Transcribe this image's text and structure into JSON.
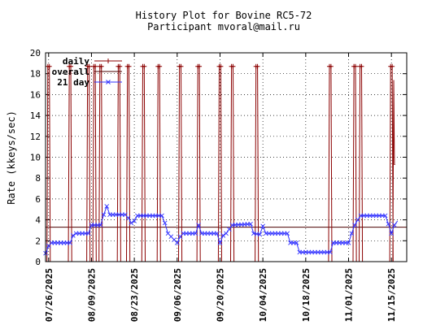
{
  "chart_data": {
    "type": "line",
    "title": "History Plot for Bovine RC5-72",
    "subtitle": "Participant mvoral@mail.ru",
    "xlabel": "",
    "ylabel": "Rate (kkeys/sec)",
    "ylim": [
      0,
      20
    ],
    "yticks": [
      0,
      2,
      4,
      6,
      8,
      10,
      12,
      14,
      16,
      18,
      20
    ],
    "xlim": [
      "2025-07-25",
      "2025-11-20"
    ],
    "xticks": [
      "07/26/2025",
      "08/09/2025",
      "08/23/2025",
      "09/06/2025",
      "09/20/2025",
      "10/04/2025",
      "10/18/2025",
      "11/01/2025",
      "11/15/2025"
    ],
    "grid": true,
    "legend_position": "top-left",
    "colors": {
      "daily": "#8b0000",
      "overall": "#4b0000",
      "21day": "#3333ff",
      "grid": "#000000"
    },
    "series": [
      {
        "name": "daily",
        "style": "impulse-peaks",
        "marker": "+",
        "peaks": [
          {
            "date": "2025-07-26",
            "value": 18.7
          },
          {
            "date": "2025-08-02",
            "value": 18.7
          },
          {
            "date": "2025-08-08",
            "value": 18.7
          },
          {
            "date": "2025-08-10",
            "value": 18.7
          },
          {
            "date": "2025-08-12",
            "value": 18.7
          },
          {
            "date": "2025-08-18",
            "value": 18.7
          },
          {
            "date": "2025-08-21",
            "value": 18.7
          },
          {
            "date": "2025-08-26",
            "value": 18.7
          },
          {
            "date": "2025-08-31",
            "value": 18.7
          },
          {
            "date": "2025-09-07",
            "value": 18.7
          },
          {
            "date": "2025-09-13",
            "value": 18.7
          },
          {
            "date": "2025-09-20",
            "value": 18.7
          },
          {
            "date": "2025-09-24",
            "value": 18.7
          },
          {
            "date": "2025-10-02",
            "value": 18.7
          },
          {
            "date": "2025-10-26",
            "value": 18.7
          },
          {
            "date": "2025-11-03",
            "value": 18.7
          },
          {
            "date": "2025-11-05",
            "value": 18.7
          },
          {
            "date": "2025-11-15",
            "value": 18.7
          }
        ],
        "last": {
          "date": "2025-11-16",
          "value": 9.3
        }
      },
      {
        "name": "overall",
        "value": 3.3
      },
      {
        "name": "21 day",
        "marker": "x",
        "points": [
          [
            "2025-07-25",
            0.8
          ],
          [
            "2025-07-26",
            1.5
          ],
          [
            "2025-07-27",
            1.8
          ],
          [
            "2025-08-02",
            1.8
          ],
          [
            "2025-08-03",
            2.5
          ],
          [
            "2025-08-04",
            2.7
          ],
          [
            "2025-08-08",
            2.7
          ],
          [
            "2025-08-09",
            3.5
          ],
          [
            "2025-08-12",
            3.5
          ],
          [
            "2025-08-13",
            4.5
          ],
          [
            "2025-08-14",
            5.3
          ],
          [
            "2025-08-15",
            4.5
          ],
          [
            "2025-08-20",
            4.5
          ],
          [
            "2025-08-21",
            4.2
          ],
          [
            "2025-08-22",
            3.7
          ],
          [
            "2025-08-23",
            3.9
          ],
          [
            "2025-08-24",
            4.4
          ],
          [
            "2025-09-01",
            4.4
          ],
          [
            "2025-09-02",
            3.7
          ],
          [
            "2025-09-03",
            2.7
          ],
          [
            "2025-09-06",
            1.8
          ],
          [
            "2025-09-07",
            2.4
          ],
          [
            "2025-09-08",
            2.7
          ],
          [
            "2025-09-12",
            2.7
          ],
          [
            "2025-09-13",
            3.5
          ],
          [
            "2025-09-14",
            2.7
          ],
          [
            "2025-09-19",
            2.7
          ],
          [
            "2025-09-20",
            1.8
          ],
          [
            "2025-09-21",
            2.5
          ],
          [
            "2025-09-22",
            2.7
          ],
          [
            "2025-09-24",
            3.5
          ],
          [
            "2025-09-30",
            3.6
          ],
          [
            "2025-10-01",
            2.7
          ],
          [
            "2025-10-03",
            2.6
          ],
          [
            "2025-10-04",
            3.4
          ],
          [
            "2025-10-05",
            2.7
          ],
          [
            "2025-10-12",
            2.7
          ],
          [
            "2025-10-13",
            1.8
          ],
          [
            "2025-10-15",
            1.8
          ],
          [
            "2025-10-16",
            0.9
          ],
          [
            "2025-10-26",
            0.9
          ],
          [
            "2025-10-27",
            1.8
          ],
          [
            "2025-11-01",
            1.8
          ],
          [
            "2025-11-02",
            2.7
          ],
          [
            "2025-11-03",
            3.5
          ],
          [
            "2025-11-04",
            4.0
          ],
          [
            "2025-11-05",
            4.4
          ],
          [
            "2025-11-13",
            4.4
          ],
          [
            "2025-11-14",
            3.6
          ],
          [
            "2025-11-15",
            2.7
          ],
          [
            "2025-11-16",
            3.5
          ],
          [
            "2025-11-17",
            3.9
          ]
        ]
      }
    ]
  }
}
